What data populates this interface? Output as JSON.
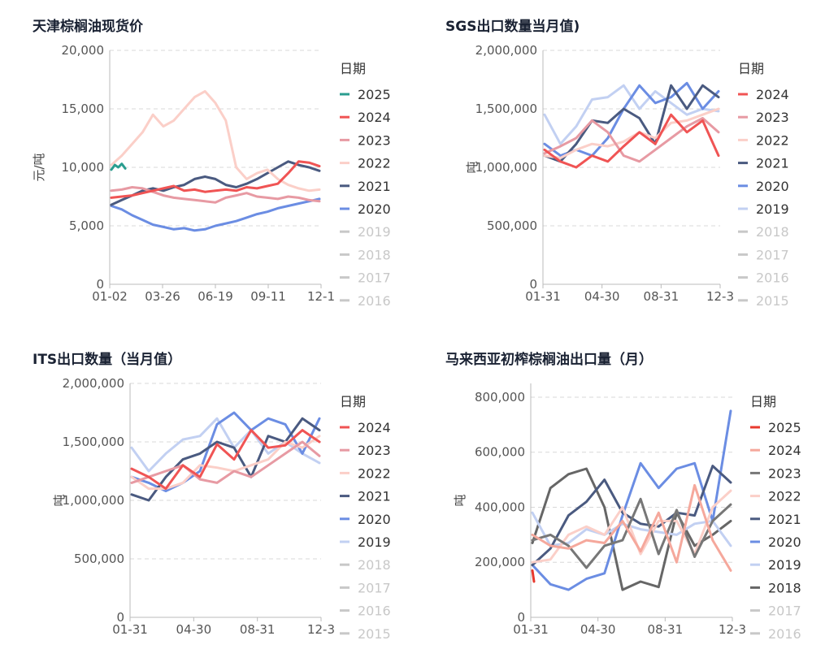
{
  "charts": [
    {
      "title": "天津棕榈油现货价",
      "chart_data": {
        "type": "line",
        "ylabel": "元/吨",
        "ylim": [
          0,
          20000
        ],
        "yticks": [
          0,
          5000,
          10000,
          15000,
          20000
        ],
        "ytick_labels": [
          "0",
          "5,000",
          "10,000",
          "15,000",
          "20,000"
        ],
        "x_tick_labels": [
          "01-02",
          "03-26",
          "06-19",
          "09-11",
          "12-1"
        ],
        "legend_title": "日期",
        "legend": [
          "2025",
          "2024",
          "2023",
          "2022",
          "2021",
          "2020",
          "2019",
          "2018",
          "2017",
          "2016"
        ],
        "legend_faded": [
          false,
          false,
          false,
          false,
          false,
          false,
          true,
          true,
          true,
          true
        ],
        "series": [
          {
            "name": "2025",
            "color": "#2a9d8f",
            "x": [
              0,
              1,
              2,
              3,
              4
            ],
            "values": [
              9800,
              10200,
              10000,
              10300,
              9900
            ]
          },
          {
            "name": "2024",
            "color": "#f05454",
            "values": [
              7400,
              7500,
              7600,
              7800,
              8000,
              8200,
              8400,
              8000,
              8100,
              7900,
              8000,
              8100,
              8000,
              8300,
              8200,
              8400,
              8600,
              9500,
              10500,
              10400,
              10100
            ]
          },
          {
            "name": "2023",
            "color": "#e79aa3",
            "values": [
              8000,
              8100,
              8300,
              8200,
              7900,
              7600,
              7400,
              7300,
              7200,
              7100,
              7000,
              7400,
              7600,
              7800,
              7500,
              7400,
              7300,
              7500,
              7400,
              7200,
              7100
            ]
          },
          {
            "name": "2022",
            "color": "#fbcfc8",
            "values": [
              10200,
              11000,
              12000,
              13000,
              14500,
              13500,
              14000,
              15000,
              16000,
              16500,
              15500,
              14000,
              10000,
              9000,
              9500,
              9800,
              9000,
              8500,
              8200,
              8000,
              8100
            ]
          },
          {
            "name": "2021",
            "color": "#4a5a80",
            "values": [
              6800,
              7200,
              7600,
              8000,
              8200,
              8000,
              8300,
              8500,
              9000,
              9200,
              9000,
              8500,
              8300,
              8600,
              9000,
              9500,
              10000,
              10500,
              10200,
              10000,
              9700
            ]
          },
          {
            "name": "2020",
            "color": "#6b8de3",
            "values": [
              6700,
              6400,
              5900,
              5500,
              5100,
              4900,
              4700,
              4800,
              4600,
              4700,
              5000,
              5200,
              5400,
              5700,
              6000,
              6200,
              6500,
              6700,
              6900,
              7100,
              7300
            ]
          }
        ]
      }
    },
    {
      "title": "SGS出口数量当月值)",
      "chart_data": {
        "type": "line",
        "ylabel": "吨",
        "ylim": [
          0,
          2000000
        ],
        "yticks": [
          0,
          500000,
          1000000,
          1500000,
          2000000
        ],
        "ytick_labels": [
          "0",
          "500,000",
          "1,000,000",
          "1,500,000",
          "2,000,000"
        ],
        "x_tick_labels": [
          "01-31",
          "04-30",
          "08-31",
          "12-3"
        ],
        "legend_title": "日期",
        "legend": [
          "2024",
          "2023",
          "2022",
          "2021",
          "2020",
          "2019",
          "2018",
          "2017",
          "2016",
          "2015"
        ],
        "legend_faded": [
          false,
          false,
          false,
          false,
          false,
          false,
          true,
          true,
          true,
          true
        ],
        "series": [
          {
            "name": "2024",
            "color": "#f05454",
            "values": [
              1150000,
              1050000,
              1000000,
              1100000,
              1050000,
              1180000,
              1300000,
              1200000,
              1450000,
              1300000,
              1400000,
              1100000
            ]
          },
          {
            "name": "2023",
            "color": "#e79aa3",
            "values": [
              1120000,
              1180000,
              1250000,
              1400000,
              1300000,
              1100000,
              1050000,
              1150000,
              1250000,
              1350000,
              1420000,
              1300000
            ]
          },
          {
            "name": "2022",
            "color": "#fbcfc8",
            "values": [
              1100000,
              1080000,
              1150000,
              1200000,
              1180000,
              1220000,
              1300000,
              1250000,
              1380000,
              1400000,
              1450000,
              1500000
            ]
          },
          {
            "name": "2021",
            "color": "#4a5a80",
            "values": [
              1100000,
              1050000,
              1200000,
              1400000,
              1380000,
              1500000,
              1420000,
              1200000,
              1700000,
              1500000,
              1700000,
              1600000
            ]
          },
          {
            "name": "2020",
            "color": "#6b8de3",
            "values": [
              1200000,
              1100000,
              1150000,
              1100000,
              1250000,
              1500000,
              1700000,
              1550000,
              1600000,
              1720000,
              1500000,
              1650000
            ]
          },
          {
            "name": "2019",
            "color": "#c2d0f2",
            "values": [
              1450000,
              1200000,
              1350000,
              1580000,
              1600000,
              1700000,
              1500000,
              1650000,
              1550000,
              1450000,
              1500000,
              1480000
            ]
          }
        ]
      }
    },
    {
      "title": "ITS出口数量（当月值）",
      "chart_data": {
        "type": "line",
        "ylabel": "吨",
        "ylim": [
          0,
          2000000
        ],
        "yticks": [
          0,
          500000,
          1000000,
          1500000,
          2000000
        ],
        "ytick_labels": [
          "0",
          "500,000",
          "1,000,000",
          "1,500,000",
          "2,000,000"
        ],
        "x_tick_labels": [
          "01-31",
          "04-30",
          "08-31",
          "12-3"
        ],
        "legend_title": "日期",
        "legend": [
          "2024",
          "2023",
          "2022",
          "2021",
          "2020",
          "2019",
          "2018",
          "2017",
          "2016",
          "2015"
        ],
        "legend_faded": [
          false,
          false,
          false,
          false,
          false,
          false,
          true,
          true,
          true,
          true
        ],
        "series": [
          {
            "name": "2024",
            "color": "#f05454",
            "values": [
              1270000,
              1200000,
              1100000,
              1300000,
              1200000,
              1480000,
              1350000,
              1600000,
              1450000,
              1470000,
              1600000,
              1500000
            ]
          },
          {
            "name": "2023",
            "color": "#e79aa3",
            "values": [
              1150000,
              1200000,
              1250000,
              1300000,
              1180000,
              1150000,
              1250000,
              1200000,
              1300000,
              1400000,
              1500000,
              1380000
            ]
          },
          {
            "name": "2022",
            "color": "#fbcfc8",
            "values": [
              1200000,
              1100000,
              1100000,
              1150000,
              1300000,
              1280000,
              1250000,
              1300000,
              1350000,
              1500000,
              1450000,
              1550000
            ]
          },
          {
            "name": "2021",
            "color": "#4a5a80",
            "values": [
              1050000,
              1000000,
              1200000,
              1350000,
              1400000,
              1500000,
              1450000,
              1200000,
              1550000,
              1500000,
              1700000,
              1600000
            ]
          },
          {
            "name": "2020",
            "color": "#6b8de3",
            "values": [
              1200000,
              1150000,
              1080000,
              1150000,
              1250000,
              1650000,
              1750000,
              1600000,
              1700000,
              1650000,
              1400000,
              1700000
            ]
          },
          {
            "name": "2019",
            "color": "#c2d0f2",
            "values": [
              1450000,
              1250000,
              1400000,
              1520000,
              1550000,
              1700000,
              1450000,
              1600000,
              1400000,
              1500000,
              1400000,
              1320000
            ]
          }
        ]
      }
    },
    {
      "title": "马来西亚初榨棕榈油出口量（月）",
      "chart_data": {
        "type": "line",
        "ylabel": "吨",
        "ylim": [
          0,
          850000
        ],
        "yticks": [
          0,
          200000,
          400000,
          600000,
          800000
        ],
        "ytick_labels": [
          "0",
          "200,000",
          "400,000",
          "600,000",
          "800,000"
        ],
        "x_tick_labels": [
          "01-31",
          "04-30",
          "08-31",
          "12-3"
        ],
        "legend_title": "日期",
        "legend": [
          "2025",
          "2024",
          "2023",
          "2022",
          "2021",
          "2020",
          "2019",
          "2018",
          "2017",
          "2016"
        ],
        "legend_faded": [
          false,
          false,
          false,
          false,
          false,
          false,
          false,
          false,
          true,
          true
        ],
        "series": [
          {
            "name": "2025",
            "color": "#e83a2e",
            "x": [
              0,
              0.5
            ],
            "values": [
              170000,
              130000
            ]
          },
          {
            "name": "2024",
            "color": "#f5a89c",
            "values": [
              300000,
              260000,
              250000,
              280000,
              270000,
              350000,
              240000,
              380000,
              200000,
              480000,
              280000,
              170000
            ]
          },
          {
            "name": "2023",
            "color": "#777777",
            "values": [
              280000,
              300000,
              260000,
              180000,
              260000,
              280000,
              430000,
              230000,
              390000,
              220000,
              350000,
              410000
            ]
          },
          {
            "name": "2022",
            "color": "#fbcfc8",
            "values": [
              200000,
              210000,
              300000,
              330000,
              300000,
              400000,
              230000,
              350000,
              350000,
              230000,
              400000,
              460000
            ]
          },
          {
            "name": "2021",
            "color": "#4a5a80",
            "values": [
              190000,
              250000,
              370000,
              420000,
              500000,
              380000,
              340000,
              330000,
              380000,
              370000,
              550000,
              490000
            ]
          },
          {
            "name": "2020",
            "color": "#6b8de3",
            "values": [
              190000,
              120000,
              100000,
              140000,
              160000,
              370000,
              560000,
              470000,
              540000,
              560000,
              350000,
              750000
            ]
          },
          {
            "name": "2019",
            "color": "#c2d0f2",
            "values": [
              380000,
              260000,
              270000,
              320000,
              300000,
              340000,
              320000,
              310000,
              300000,
              340000,
              350000,
              260000
            ]
          },
          {
            "name": "2018",
            "color": "#666666",
            "values": [
              270000,
              470000,
              520000,
              540000,
              400000,
              100000,
              130000,
              110000,
              380000,
              260000,
              300000,
              350000
            ]
          }
        ]
      }
    }
  ]
}
